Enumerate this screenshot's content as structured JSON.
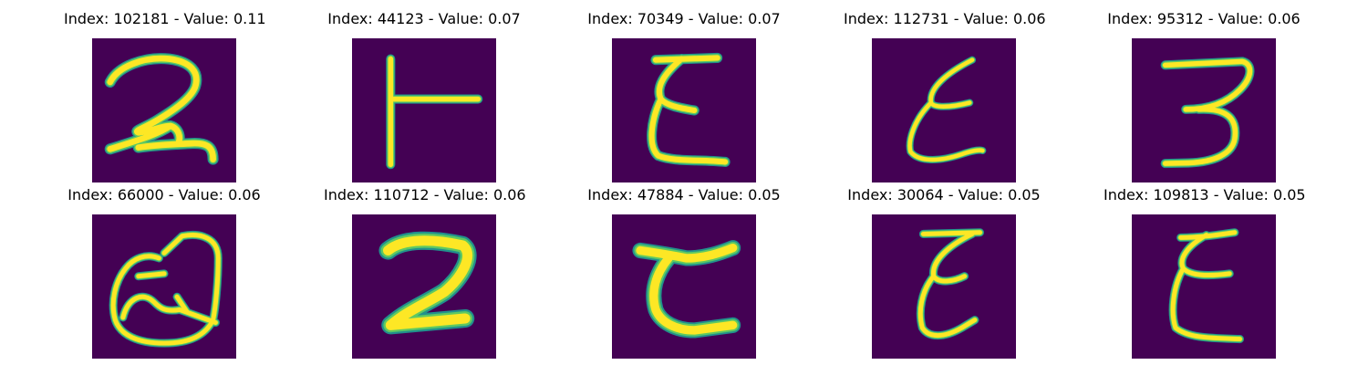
{
  "colors": {
    "background": "#440154",
    "edge": "#21918c",
    "mid": "#5ec962",
    "core": "#fde725"
  },
  "panels": [
    {
      "title": "Index: 102181 - Value: 0.11",
      "glyph": "curly-two",
      "stroke": 12
    },
    {
      "title": "Index: 44123 - Value: 0.07",
      "glyph": "sideways-t",
      "stroke": 10
    },
    {
      "title": "Index: 70349 - Value: 0.07",
      "glyph": "epsilon-a",
      "stroke": 11
    },
    {
      "title": "Index: 112731 - Value: 0.06",
      "glyph": "epsilon-b",
      "stroke": 8
    },
    {
      "title": "Index: 95312 - Value: 0.06",
      "glyph": "three",
      "stroke": 10
    },
    {
      "title": "Index: 66000 - Value: 0.06",
      "glyph": "q-loop",
      "stroke": 9
    },
    {
      "title": "Index: 110712 - Value: 0.06",
      "glyph": "bold-two",
      "stroke": 20
    },
    {
      "title": "Index: 47884 - Value: 0.05",
      "glyph": "c-shape",
      "stroke": 17
    },
    {
      "title": "Index: 30064 - Value: 0.05",
      "glyph": "epsilon-c",
      "stroke": 9
    },
    {
      "title": "Index: 109813 - Value: 0.05",
      "glyph": "epsilon-d",
      "stroke": 9
    }
  ]
}
